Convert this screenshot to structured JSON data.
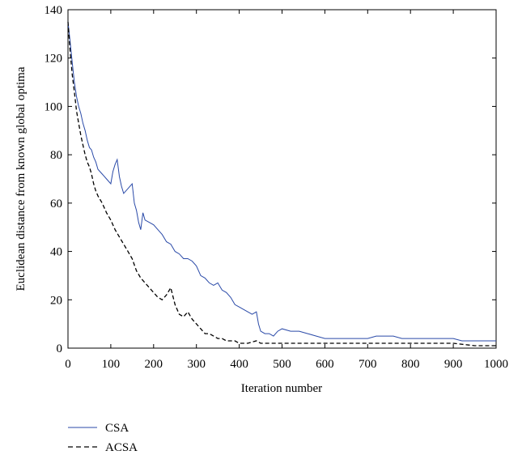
{
  "chart_data": {
    "type": "line",
    "xlabel": "Iteration number",
    "ylabel": "Euclidean distance from known global optima",
    "xlim": [
      0,
      1000
    ],
    "ylim": [
      0,
      140
    ],
    "x_ticks": [
      0,
      100,
      200,
      300,
      400,
      500,
      600,
      700,
      800,
      900,
      1000
    ],
    "y_ticks": [
      0,
      20,
      40,
      60,
      80,
      100,
      120,
      140
    ],
    "grid": false,
    "legend_position": "bottom-left, below plot",
    "series": [
      {
        "name": "CSA",
        "color": "#2a4aa8",
        "style": "solid",
        "points": [
          [
            0,
            135
          ],
          [
            5,
            127
          ],
          [
            10,
            118
          ],
          [
            15,
            110
          ],
          [
            20,
            104
          ],
          [
            25,
            100
          ],
          [
            30,
            97
          ],
          [
            35,
            93
          ],
          [
            40,
            90
          ],
          [
            45,
            86
          ],
          [
            50,
            83
          ],
          [
            55,
            82
          ],
          [
            60,
            79
          ],
          [
            65,
            77
          ],
          [
            70,
            74
          ],
          [
            80,
            72
          ],
          [
            90,
            70
          ],
          [
            100,
            68
          ],
          [
            105,
            73
          ],
          [
            110,
            76
          ],
          [
            115,
            78
          ],
          [
            120,
            71
          ],
          [
            125,
            67
          ],
          [
            130,
            64
          ],
          [
            140,
            66
          ],
          [
            150,
            68
          ],
          [
            155,
            60
          ],
          [
            160,
            57
          ],
          [
            165,
            52
          ],
          [
            170,
            49
          ],
          [
            175,
            56
          ],
          [
            180,
            53
          ],
          [
            190,
            52
          ],
          [
            200,
            51
          ],
          [
            210,
            49
          ],
          [
            220,
            47
          ],
          [
            230,
            44
          ],
          [
            240,
            43
          ],
          [
            250,
            40
          ],
          [
            260,
            39
          ],
          [
            270,
            37
          ],
          [
            280,
            37
          ],
          [
            290,
            36
          ],
          [
            300,
            34
          ],
          [
            310,
            30
          ],
          [
            320,
            29
          ],
          [
            330,
            27
          ],
          [
            340,
            26
          ],
          [
            350,
            27
          ],
          [
            360,
            24
          ],
          [
            370,
            23
          ],
          [
            380,
            21
          ],
          [
            390,
            18
          ],
          [
            400,
            17
          ],
          [
            410,
            16
          ],
          [
            420,
            15
          ],
          [
            430,
            14
          ],
          [
            440,
            15
          ],
          [
            445,
            10
          ],
          [
            450,
            7
          ],
          [
            460,
            6
          ],
          [
            470,
            6
          ],
          [
            480,
            5
          ],
          [
            490,
            7
          ],
          [
            500,
            8
          ],
          [
            520,
            7
          ],
          [
            540,
            7
          ],
          [
            560,
            6
          ],
          [
            580,
            5
          ],
          [
            600,
            4
          ],
          [
            620,
            4
          ],
          [
            640,
            4
          ],
          [
            660,
            4
          ],
          [
            680,
            4
          ],
          [
            700,
            4
          ],
          [
            720,
            5
          ],
          [
            740,
            5
          ],
          [
            760,
            5
          ],
          [
            780,
            4
          ],
          [
            800,
            4
          ],
          [
            820,
            4
          ],
          [
            840,
            4
          ],
          [
            860,
            4
          ],
          [
            880,
            4
          ],
          [
            900,
            4
          ],
          [
            920,
            3
          ],
          [
            940,
            3
          ],
          [
            960,
            3
          ],
          [
            980,
            3
          ],
          [
            1000,
            3
          ]
        ]
      },
      {
        "name": "ACSA",
        "color": "#000000",
        "style": "dashed",
        "points": [
          [
            0,
            135
          ],
          [
            5,
            123
          ],
          [
            10,
            113
          ],
          [
            15,
            106
          ],
          [
            20,
            98
          ],
          [
            25,
            93
          ],
          [
            30,
            88
          ],
          [
            35,
            84
          ],
          [
            40,
            80
          ],
          [
            45,
            77
          ],
          [
            50,
            75
          ],
          [
            55,
            72
          ],
          [
            60,
            68
          ],
          [
            65,
            65
          ],
          [
            70,
            63
          ],
          [
            80,
            60
          ],
          [
            90,
            56
          ],
          [
            100,
            53
          ],
          [
            110,
            49
          ],
          [
            120,
            46
          ],
          [
            130,
            43
          ],
          [
            140,
            40
          ],
          [
            150,
            37
          ],
          [
            160,
            32
          ],
          [
            170,
            29
          ],
          [
            180,
            27
          ],
          [
            190,
            25
          ],
          [
            200,
            23
          ],
          [
            210,
            21
          ],
          [
            220,
            20
          ],
          [
            230,
            22
          ],
          [
            240,
            25
          ],
          [
            250,
            18
          ],
          [
            260,
            14
          ],
          [
            270,
            13
          ],
          [
            280,
            15
          ],
          [
            290,
            12
          ],
          [
            300,
            10
          ],
          [
            310,
            8
          ],
          [
            320,
            6
          ],
          [
            330,
            6
          ],
          [
            340,
            5
          ],
          [
            350,
            4
          ],
          [
            360,
            4
          ],
          [
            370,
            3
          ],
          [
            380,
            3
          ],
          [
            390,
            3
          ],
          [
            400,
            2
          ],
          [
            420,
            2
          ],
          [
            440,
            3
          ],
          [
            450,
            2
          ],
          [
            500,
            2
          ],
          [
            550,
            2
          ],
          [
            600,
            2
          ],
          [
            650,
            2
          ],
          [
            700,
            2
          ],
          [
            750,
            2
          ],
          [
            800,
            2
          ],
          [
            850,
            2
          ],
          [
            900,
            2
          ],
          [
            950,
            1
          ],
          [
            1000,
            1
          ]
        ]
      }
    ]
  }
}
